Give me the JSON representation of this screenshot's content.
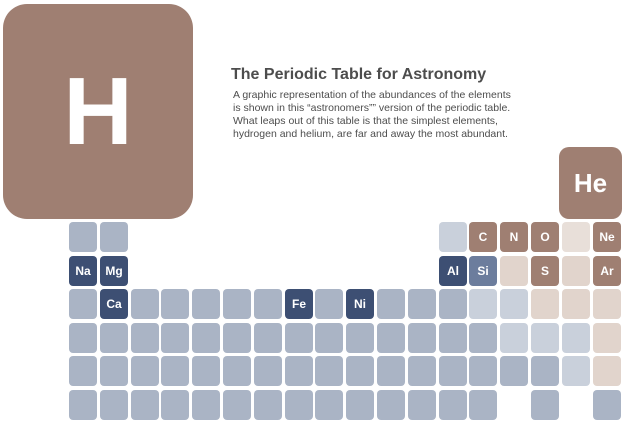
{
  "title": "The Periodic Table for Astronomy",
  "description_lines": [
    "A graphic representation of the abundances of the elements",
    "is shown in this “astronomers”” version of the periodic table.",
    "What leaps out of this table is that the simplest elements,",
    "hydrogen and helium, are far and away the most abundant."
  ],
  "big_elements": {
    "hydrogen": "H",
    "helium": "He"
  },
  "abundance_colors": {
    "dominant": "#9f7f72",
    "major": "#9f7f72",
    "notable": "#3d4f73",
    "notable_secondary": "#6c7d9d",
    "minor": "#aab4c5",
    "trace_light": "#c9d0db",
    "trace_pink": "#e1d4cc",
    "trace_pink_light": "#e8dfd9"
  },
  "grid": {
    "columns": 18,
    "rows": [
      {
        "period": 2,
        "cells": [
          {
            "col": 1,
            "tier": "minor"
          },
          {
            "col": 2,
            "tier": "minor"
          },
          {
            "col": 13,
            "tier": "trace_light"
          },
          {
            "col": 14,
            "tier": "major",
            "symbol": "C"
          },
          {
            "col": 15,
            "tier": "major",
            "symbol": "N"
          },
          {
            "col": 16,
            "tier": "major",
            "symbol": "O"
          },
          {
            "col": 17,
            "tier": "trace_pink_light"
          },
          {
            "col": 18,
            "tier": "major",
            "symbol": "Ne"
          }
        ]
      },
      {
        "period": 3,
        "cells": [
          {
            "col": 1,
            "tier": "notable",
            "symbol": "Na"
          },
          {
            "col": 2,
            "tier": "notable",
            "symbol": "Mg"
          },
          {
            "col": 13,
            "tier": "notable",
            "symbol": "Al"
          },
          {
            "col": 14,
            "tier": "notable_secondary",
            "symbol": "Si"
          },
          {
            "col": 15,
            "tier": "trace_pink"
          },
          {
            "col": 16,
            "tier": "major",
            "symbol": "S"
          },
          {
            "col": 17,
            "tier": "trace_pink"
          },
          {
            "col": 18,
            "tier": "major",
            "symbol": "Ar"
          }
        ]
      },
      {
        "period": 4,
        "cells": [
          {
            "col": 1,
            "tier": "minor"
          },
          {
            "col": 2,
            "tier": "notable",
            "symbol": "Ca"
          },
          {
            "col": 3,
            "tier": "minor"
          },
          {
            "col": 4,
            "tier": "minor"
          },
          {
            "col": 5,
            "tier": "minor"
          },
          {
            "col": 6,
            "tier": "minor"
          },
          {
            "col": 7,
            "tier": "minor"
          },
          {
            "col": 8,
            "tier": "notable",
            "symbol": "Fe"
          },
          {
            "col": 9,
            "tier": "minor"
          },
          {
            "col": 10,
            "tier": "notable",
            "symbol": "Ni"
          },
          {
            "col": 11,
            "tier": "minor"
          },
          {
            "col": 12,
            "tier": "minor"
          },
          {
            "col": 13,
            "tier": "minor"
          },
          {
            "col": 14,
            "tier": "trace_light"
          },
          {
            "col": 15,
            "tier": "trace_light"
          },
          {
            "col": 16,
            "tier": "trace_pink"
          },
          {
            "col": 17,
            "tier": "trace_pink"
          },
          {
            "col": 18,
            "tier": "trace_pink"
          }
        ]
      },
      {
        "period": 5,
        "cells": [
          {
            "col": 1,
            "tier": "minor"
          },
          {
            "col": 2,
            "tier": "minor"
          },
          {
            "col": 3,
            "tier": "minor"
          },
          {
            "col": 4,
            "tier": "minor"
          },
          {
            "col": 5,
            "tier": "minor"
          },
          {
            "col": 6,
            "tier": "minor"
          },
          {
            "col": 7,
            "tier": "minor"
          },
          {
            "col": 8,
            "tier": "minor"
          },
          {
            "col": 9,
            "tier": "minor"
          },
          {
            "col": 10,
            "tier": "minor"
          },
          {
            "col": 11,
            "tier": "minor"
          },
          {
            "col": 12,
            "tier": "minor"
          },
          {
            "col": 13,
            "tier": "minor"
          },
          {
            "col": 14,
            "tier": "minor"
          },
          {
            "col": 15,
            "tier": "trace_light"
          },
          {
            "col": 16,
            "tier": "trace_light"
          },
          {
            "col": 17,
            "tier": "trace_light"
          },
          {
            "col": 18,
            "tier": "trace_pink"
          }
        ]
      },
      {
        "period": 6,
        "cells": [
          {
            "col": 1,
            "tier": "minor"
          },
          {
            "col": 2,
            "tier": "minor"
          },
          {
            "col": 3,
            "tier": "minor"
          },
          {
            "col": 4,
            "tier": "minor"
          },
          {
            "col": 5,
            "tier": "minor"
          },
          {
            "col": 6,
            "tier": "minor"
          },
          {
            "col": 7,
            "tier": "minor"
          },
          {
            "col": 8,
            "tier": "minor"
          },
          {
            "col": 9,
            "tier": "minor"
          },
          {
            "col": 10,
            "tier": "minor"
          },
          {
            "col": 11,
            "tier": "minor"
          },
          {
            "col": 12,
            "tier": "minor"
          },
          {
            "col": 13,
            "tier": "minor"
          },
          {
            "col": 14,
            "tier": "minor"
          },
          {
            "col": 15,
            "tier": "minor"
          },
          {
            "col": 16,
            "tier": "minor"
          },
          {
            "col": 17,
            "tier": "trace_light"
          },
          {
            "col": 18,
            "tier": "trace_pink"
          }
        ]
      },
      {
        "period": 7,
        "cells": [
          {
            "col": 1,
            "tier": "minor"
          },
          {
            "col": 2,
            "tier": "minor"
          },
          {
            "col": 3,
            "tier": "minor"
          },
          {
            "col": 4,
            "tier": "minor"
          },
          {
            "col": 5,
            "tier": "minor"
          },
          {
            "col": 6,
            "tier": "minor"
          },
          {
            "col": 7,
            "tier": "minor"
          },
          {
            "col": 8,
            "tier": "minor"
          },
          {
            "col": 9,
            "tier": "minor"
          },
          {
            "col": 10,
            "tier": "minor"
          },
          {
            "col": 11,
            "tier": "minor"
          },
          {
            "col": 12,
            "tier": "minor"
          },
          {
            "col": 13,
            "tier": "minor"
          },
          {
            "col": 14,
            "tier": "minor"
          },
          {
            "col": 16,
            "tier": "minor"
          },
          {
            "col": 18,
            "tier": "minor"
          }
        ]
      }
    ]
  }
}
